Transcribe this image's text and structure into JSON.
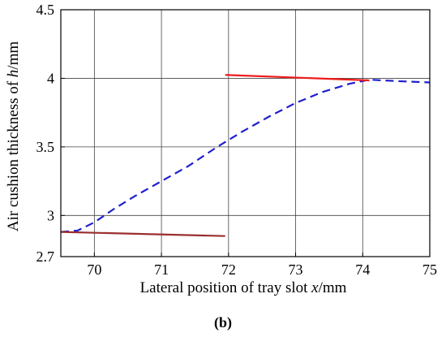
{
  "chart_data": {
    "type": "line",
    "caption": "(b)",
    "xlabel_parts": [
      "Lateral position of tray slot ",
      "x",
      "/mm"
    ],
    "ylabel_parts": [
      "Air cushion thickness of  ",
      "h",
      "/mm"
    ],
    "xlim": [
      69.5,
      75
    ],
    "ylim": [
      2.7,
      4.5
    ],
    "xticks": [
      70,
      71,
      72,
      73,
      74,
      75
    ],
    "xtick_labels": [
      "70",
      "71",
      "72",
      "73",
      "74",
      "75"
    ],
    "yticks": [
      2.7,
      3,
      3.5,
      4,
      4.5
    ],
    "ytick_labels": [
      "2.7",
      "3",
      "3.5",
      "4",
      "4.5"
    ],
    "grid": true,
    "series": [
      {
        "style": "dashed",
        "color": "#2020d0",
        "x": [
          69.5,
          69.75,
          70.0,
          70.3,
          70.6,
          71.0,
          71.4,
          71.8,
          72.2,
          72.6,
          73.0,
          73.4,
          73.8,
          74.1,
          74.5,
          75.0
        ],
        "y": [
          2.88,
          2.89,
          2.95,
          3.05,
          3.14,
          3.25,
          3.36,
          3.49,
          3.61,
          3.72,
          3.82,
          3.9,
          3.96,
          3.99,
          3.98,
          3.97
        ]
      },
      {
        "style": "solid",
        "color": "#ee1c1c",
        "x": [
          71.95,
          74.1
        ],
        "y": [
          4.025,
          3.985
        ]
      },
      {
        "style": "solid",
        "color": "#9b2f2f",
        "x": [
          69.5,
          71.95
        ],
        "y": [
          2.88,
          2.85
        ]
      }
    ]
  }
}
